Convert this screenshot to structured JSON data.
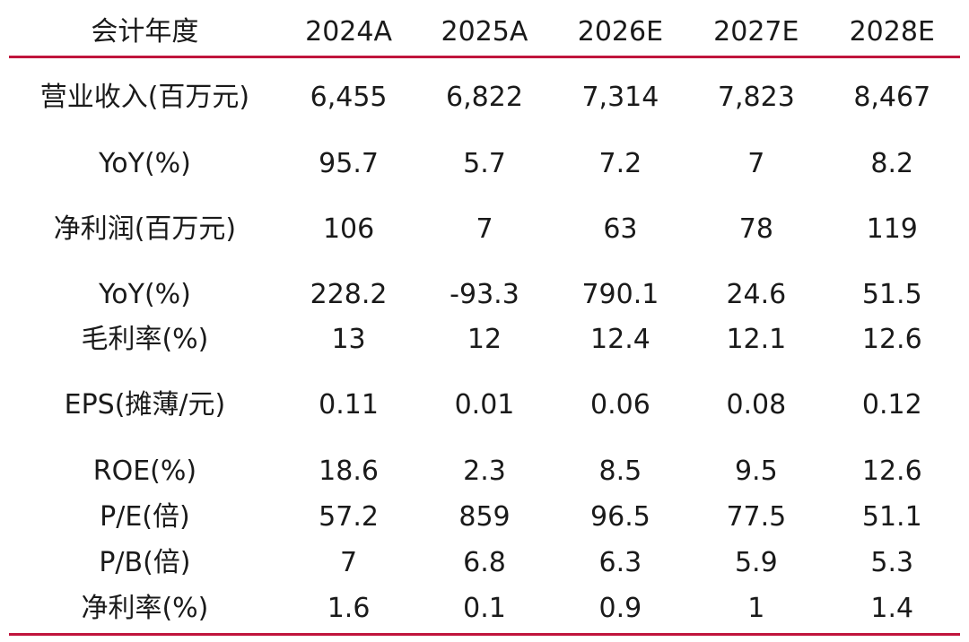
{
  "table": {
    "header": {
      "label": "会计年度",
      "years": [
        "2024A",
        "2025A",
        "2026E",
        "2027E",
        "2028E"
      ]
    },
    "rows": [
      {
        "label": "营业收入(百万元)",
        "values": [
          "6,455",
          "6,822",
          "7,314",
          "7,823",
          "8,467"
        ]
      },
      {
        "label": "YoY(%)",
        "values": [
          "95.7",
          "5.7",
          "7.2",
          "7",
          "8.2"
        ]
      },
      {
        "label": "净利润(百万元)",
        "values": [
          "106",
          "7",
          "63",
          "78",
          "119"
        ]
      },
      {
        "label": "YoY(%)",
        "values": [
          "228.2",
          "-93.3",
          "790.1",
          "24.6",
          "51.5"
        ]
      },
      {
        "label": "毛利率(%)",
        "values": [
          "13",
          "12",
          "12.4",
          "12.1",
          "12.6"
        ]
      },
      {
        "label": "EPS(摊薄/元)",
        "values": [
          "0.11",
          "0.01",
          "0.06",
          "0.08",
          "0.12"
        ]
      },
      {
        "label": "ROE(%)",
        "values": [
          "18.6",
          "2.3",
          "8.5",
          "9.5",
          "12.6"
        ]
      },
      {
        "label": "P/E(倍)",
        "values": [
          "57.2",
          "859",
          "96.5",
          "77.5",
          "51.1"
        ]
      },
      {
        "label": "P/B(倍)",
        "values": [
          "7",
          "6.8",
          "6.3",
          "5.9",
          "5.3"
        ]
      },
      {
        "label": "净利率(%)",
        "values": [
          "1.6",
          "0.1",
          "0.9",
          "1",
          "1.4"
        ]
      }
    ],
    "rule_color": "#c0143c"
  }
}
